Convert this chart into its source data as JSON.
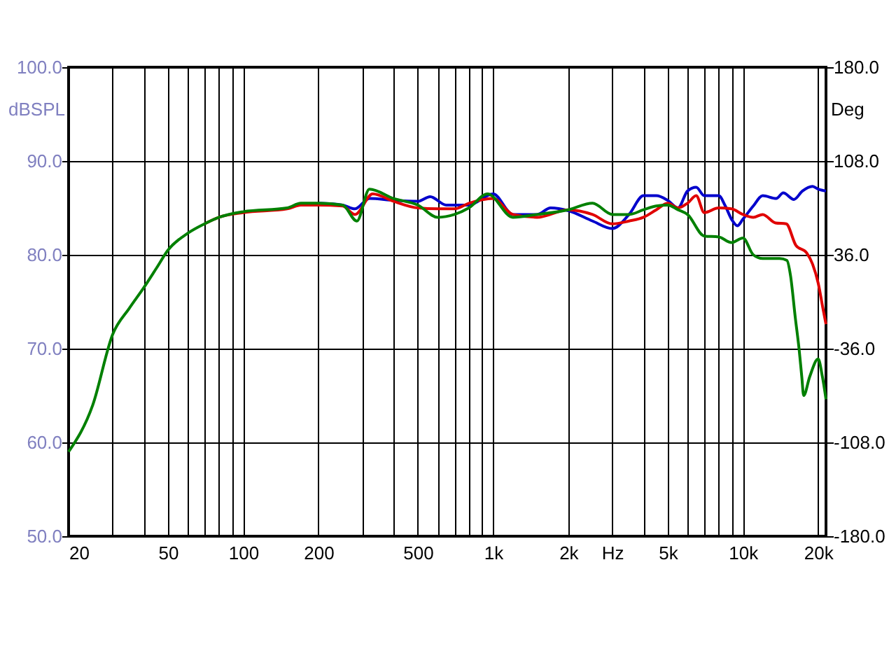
{
  "chart_data": {
    "type": "line",
    "ylabel": "dBSPL",
    "y2label": "Deg",
    "log": "x",
    "grid": true,
    "xlim": [
      20,
      21500
    ],
    "xticks": [
      20,
      {
        "value": 30,
        "label": null
      },
      {
        "value": 40,
        "label": null
      },
      50,
      {
        "value": 60,
        "label": null
      },
      {
        "value": 70,
        "label": null
      },
      {
        "value": 80,
        "label": null
      },
      {
        "value": 90,
        "label": null
      },
      100,
      200,
      {
        "value": 300,
        "label": null
      },
      {
        "value": 400,
        "label": null
      },
      500,
      {
        "value": 600,
        "label": null
      },
      {
        "value": 700,
        "label": null
      },
      {
        "value": 800,
        "label": null
      },
      {
        "value": 900,
        "label": null
      },
      {
        "value": 1000,
        "label": "1k"
      },
      {
        "value": 2000,
        "label": "2k"
      },
      {
        "value": 3000,
        "label": "Hz"
      },
      {
        "value": 4000,
        "label": null
      },
      {
        "value": 5000,
        "label": "5k"
      },
      {
        "value": 6000,
        "label": null
      },
      {
        "value": 7000,
        "label": null
      },
      {
        "value": 8000,
        "label": null
      },
      {
        "value": 9000,
        "label": null
      },
      {
        "value": 10000,
        "label": "10k"
      },
      {
        "value": 20000,
        "label": "20k"
      }
    ],
    "ylim": [
      50,
      100
    ],
    "yticks": [
      {
        "value": 50,
        "label": "50.0"
      },
      {
        "value": 60,
        "label": "60.0"
      },
      {
        "value": 70,
        "label": "70.0"
      },
      {
        "value": 80,
        "label": "80.0"
      },
      {
        "value": 90,
        "label": "90.0"
      },
      {
        "value": 100,
        "label": "100.0"
      }
    ],
    "y2lim": [
      -180,
      180
    ],
    "y2ticks": [
      {
        "value": -180,
        "label": "-180.0"
      },
      {
        "value": -108,
        "label": "-108.0"
      },
      {
        "value": -36,
        "label": "-36.0"
      },
      {
        "value": 36,
        "label": "36.0"
      },
      {
        "value": 108,
        "label": "108.0"
      },
      {
        "value": 180,
        "label": "180.0"
      }
    ],
    "series": [
      {
        "color": "#0000cc",
        "x": [
          200,
          250,
          280,
          320,
          400,
          500,
          560,
          650,
          800,
          1000,
          1200,
          1500,
          1700,
          2000,
          2500,
          3000,
          3500,
          4000,
          4500,
          5000,
          5500,
          6000,
          6500,
          7000,
          8000,
          8500,
          9000,
          9500,
          10000,
          11000,
          12000,
          13600,
          14500,
          16000,
          17300,
          19000,
          20000,
          21500
        ],
        "values": [
          85.5,
          85.3,
          84.9,
          86,
          85.8,
          85.7,
          86.2,
          85.3,
          85.3,
          86.5,
          84.3,
          84.3,
          85,
          84.7,
          83.6,
          82.8,
          84.3,
          86.3,
          86.3,
          85.8,
          85,
          86.8,
          87.2,
          86.3,
          86.3,
          85.2,
          83.8,
          83.1,
          83.8,
          85.2,
          86.3,
          86,
          86.6,
          85.9,
          86.8,
          87.3,
          87,
          86.8
        ]
      },
      {
        "color": "#e00000",
        "x": [
          70,
          80,
          100,
          150,
          170,
          200,
          250,
          280,
          330,
          400,
          500,
          600,
          700,
          800,
          1000,
          1200,
          1500,
          2000,
          2500,
          3000,
          3500,
          4000,
          4500,
          5000,
          5500,
          6000,
          6500,
          7000,
          8000,
          9000,
          10000,
          11000,
          12000,
          13500,
          14900,
          16300,
          18000,
          19000,
          20000,
          21000,
          21500
        ],
        "values": [
          83.3,
          84,
          84.5,
          84.9,
          85.3,
          85.3,
          85.2,
          84.3,
          86.5,
          85.7,
          85,
          84.9,
          84.9,
          85.5,
          86,
          84.3,
          84,
          84.8,
          84.3,
          83.3,
          83.6,
          84,
          84.8,
          85.5,
          85,
          85.5,
          86.3,
          84.5,
          85,
          84.9,
          84.3,
          84,
          84.3,
          83.4,
          83.3,
          81,
          80.2,
          79,
          77,
          74,
          72.6
        ]
      },
      {
        "color": "#008000",
        "x": [
          20,
          25,
          30,
          35,
          40,
          45,
          50,
          60,
          70,
          80,
          100,
          150,
          170,
          200,
          250,
          285,
          320,
          400,
          500,
          600,
          700,
          800,
          950,
          1200,
          1500,
          2000,
          2500,
          3000,
          3500,
          4000,
          4500,
          5000,
          5500,
          6000,
          7000,
          8000,
          9000,
          10000,
          11000,
          12000,
          14000,
          15000,
          15500,
          16200,
          16800,
          17200,
          17500,
          18500,
          20000,
          20800,
          21500
        ],
        "values": [
          59,
          64,
          71.5,
          74.3,
          76.5,
          78.6,
          80.5,
          82.3,
          83.3,
          84,
          84.6,
          85,
          85.5,
          85.5,
          85.3,
          83.6,
          87,
          86,
          85.3,
          84,
          84.3,
          85,
          86.5,
          84,
          84.3,
          84.8,
          85.5,
          84.3,
          84.3,
          84.8,
          85.2,
          85.3,
          84.8,
          84.3,
          82,
          81.9,
          81.3,
          81.8,
          80,
          79.6,
          79.6,
          79.4,
          77.8,
          73.3,
          69.8,
          67,
          65,
          67,
          68.9,
          67,
          64.6
        ]
      }
    ]
  }
}
